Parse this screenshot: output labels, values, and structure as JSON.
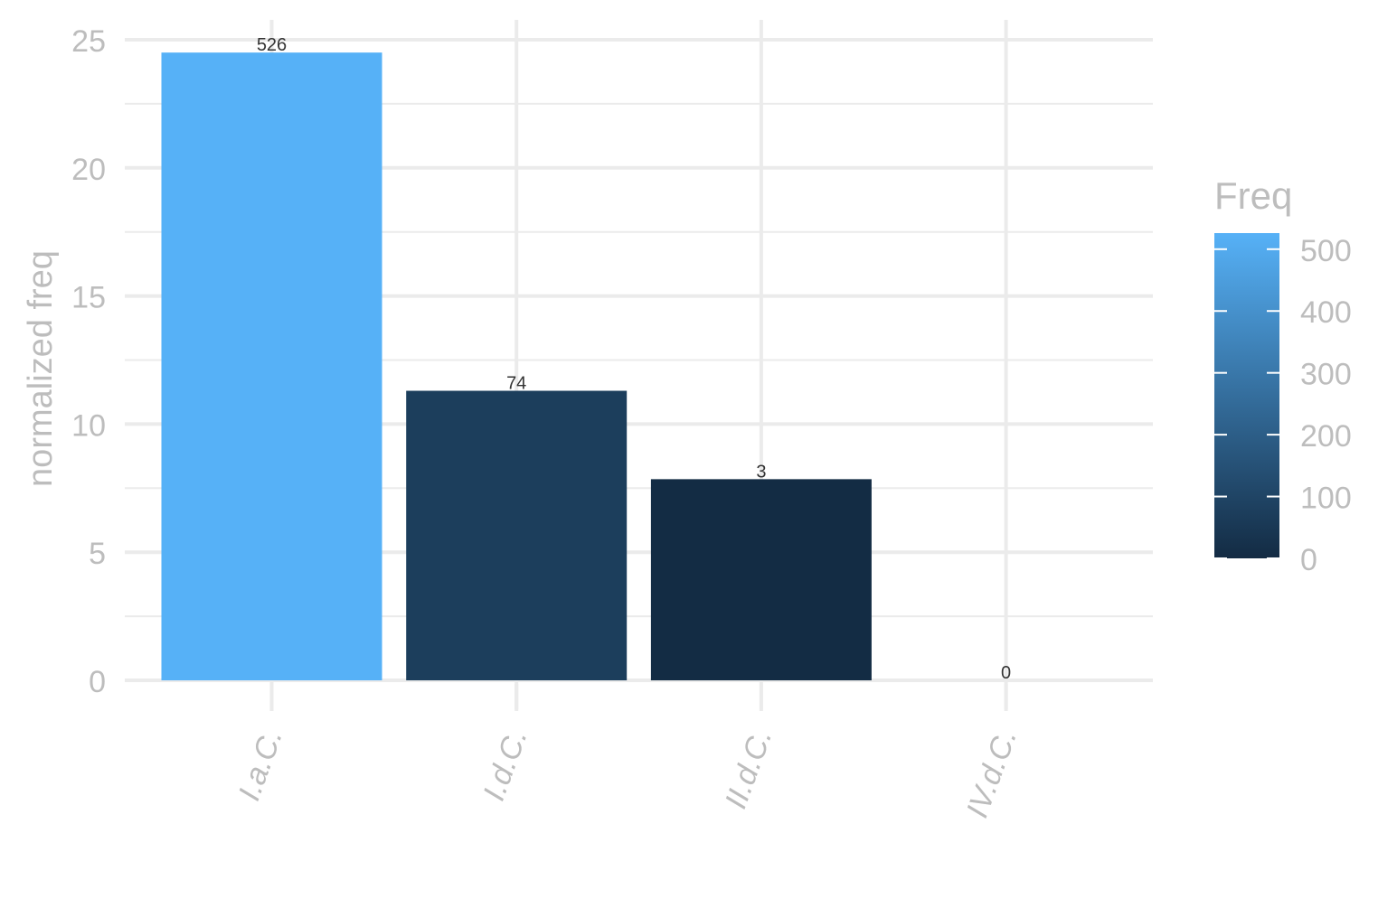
{
  "chart_data": {
    "type": "bar",
    "title": "",
    "xlabel": "",
    "ylabel": "normalized freq",
    "ylim": [
      0,
      25
    ],
    "y_ticks": [
      0,
      5,
      10,
      15,
      20,
      25
    ],
    "grid": true,
    "categories": [
      "I.a.C.",
      "I.d.C.",
      "II.d.C.",
      "IV.d.C."
    ],
    "values": [
      24.5,
      11.3,
      7.85,
      0
    ],
    "freq": [
      526,
      74,
      3,
      0
    ],
    "data_labels": [
      "526",
      "74",
      "3",
      "0"
    ],
    "legend": {
      "title": "Freq",
      "placement": "right",
      "type": "colorbar",
      "ticks": [
        0,
        100,
        200,
        300,
        400,
        500
      ],
      "tick_labels": [
        "0",
        "100",
        "200",
        "300",
        "400",
        "500"
      ],
      "range": [
        0,
        526
      ],
      "color_low": "#132B43",
      "color_high": "#56B1F7"
    }
  }
}
